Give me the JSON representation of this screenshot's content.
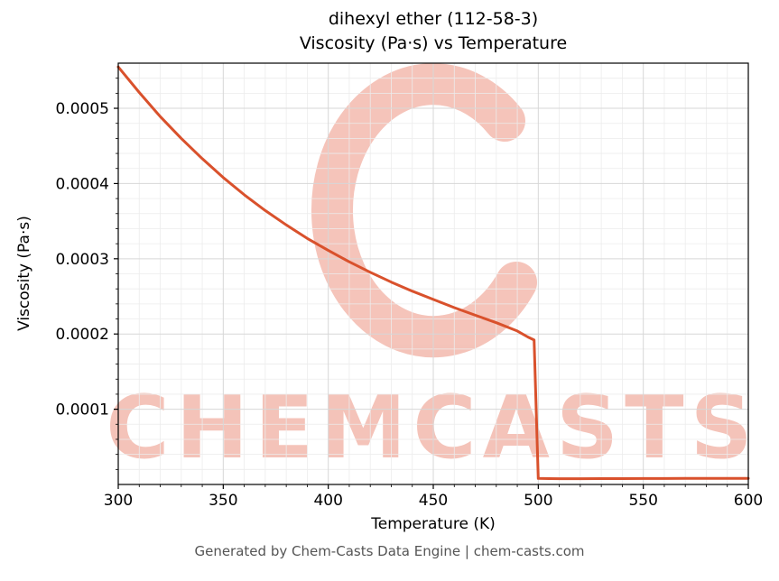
{
  "chart_data": {
    "type": "line",
    "title_line1": "dihexyl ether (112-58-3)",
    "title_line2": "Viscosity (Pa·s) vs Temperature",
    "xlabel": "Temperature (K)",
    "ylabel": "Viscosity (Pa·s)",
    "xlim": [
      300,
      600
    ],
    "ylim": [
      0,
      0.00056
    ],
    "x_ticks": [
      300,
      350,
      400,
      450,
      500,
      550,
      600
    ],
    "y_ticks": [
      0.0001,
      0.0002,
      0.0003,
      0.0004,
      0.0005
    ],
    "y_tick_labels": [
      "0.0001",
      "0.0002",
      "0.0003",
      "0.0004",
      "0.0005"
    ],
    "x_minor_step": 10,
    "y_minor_step": 2e-05,
    "grid": true,
    "line_color": "#d9512c",
    "line_width": 3,
    "series": [
      {
        "name": "viscosity",
        "x": [
          300,
          310,
          320,
          330,
          340,
          350,
          360,
          370,
          380,
          390,
          400,
          410,
          420,
          430,
          440,
          450,
          460,
          470,
          480,
          490,
          495,
          498,
          500,
          505,
          510,
          520,
          530,
          540,
          550,
          560,
          570,
          580,
          590,
          600
        ],
        "y": [
          0.000555,
          0.000521,
          0.000489,
          0.00046,
          0.000433,
          0.000408,
          0.000385,
          0.000364,
          0.000345,
          0.000327,
          0.000311,
          0.000296,
          0.000282,
          0.000269,
          0.000257,
          0.000246,
          0.000235,
          0.000225,
          0.000215,
          0.000204,
          0.000196,
          0.000192,
          8e-06,
          7.8e-06,
          7.7e-06,
          7.7e-06,
          7.8e-06,
          7.8e-06,
          7.9e-06,
          7.9e-06,
          8e-06,
          8e-06,
          8.1e-06,
          8.1e-06
        ]
      }
    ],
    "watermark": {
      "text": "CHEMCASTS",
      "color": "#e7735a",
      "opacity": 0.42
    }
  },
  "footer": {
    "text": "Generated by Chem-Casts Data Engine | chem-casts.com"
  }
}
